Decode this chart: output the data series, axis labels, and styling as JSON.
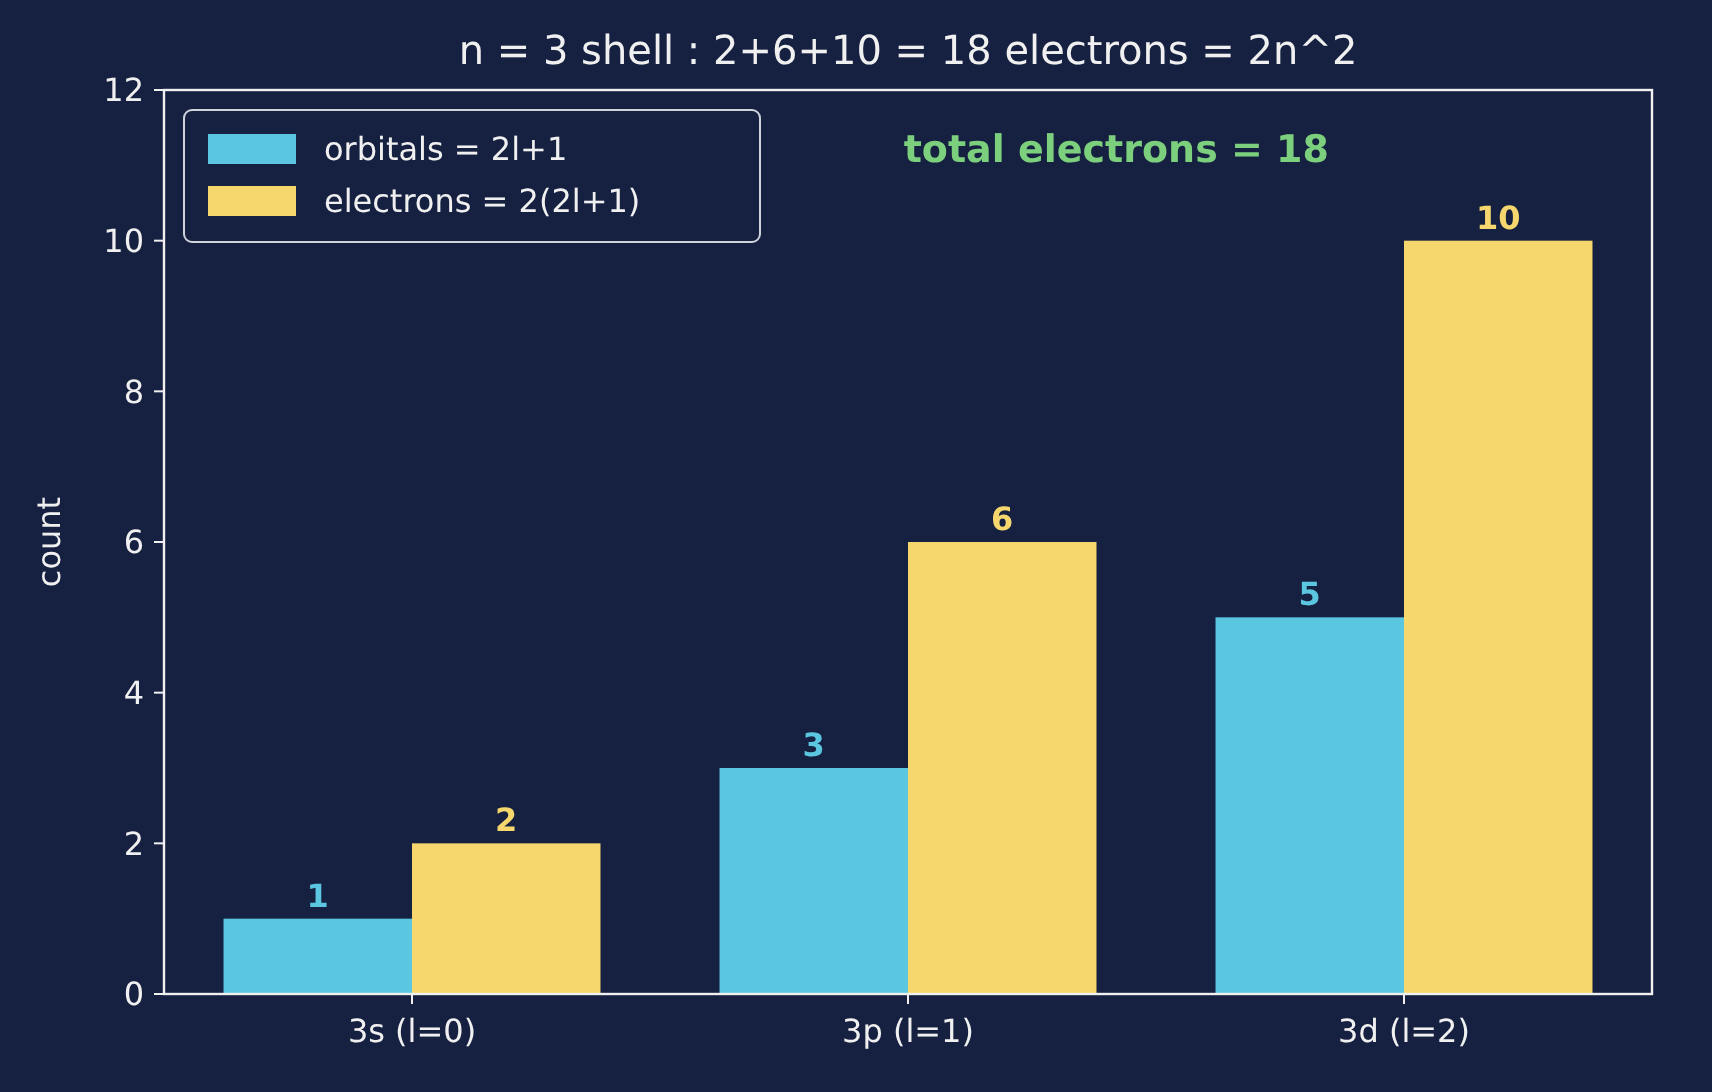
{
  "chart_data": {
    "type": "bar",
    "title": "n = 3 shell : 2+6+10 = 18 electrons = 2n^2",
    "ylabel": "count",
    "categories": [
      "3s (l=0)",
      "3p (l=1)",
      "3d (l=2)"
    ],
    "series": [
      {
        "name": "orbitals = 2l+1",
        "color": "#5bc6e0",
        "values": [
          1,
          3,
          5
        ]
      },
      {
        "name": "electrons = 2(2l+1)",
        "color": "#f5d76e",
        "values": [
          2,
          6,
          10
        ]
      }
    ],
    "ylim": [
      0,
      12
    ],
    "yticks": [
      0,
      2,
      4,
      6,
      8,
      10,
      12
    ],
    "grid": false,
    "legend": "top left",
    "data_labels": true,
    "annotations": [
      "total electrons = 18"
    ]
  }
}
